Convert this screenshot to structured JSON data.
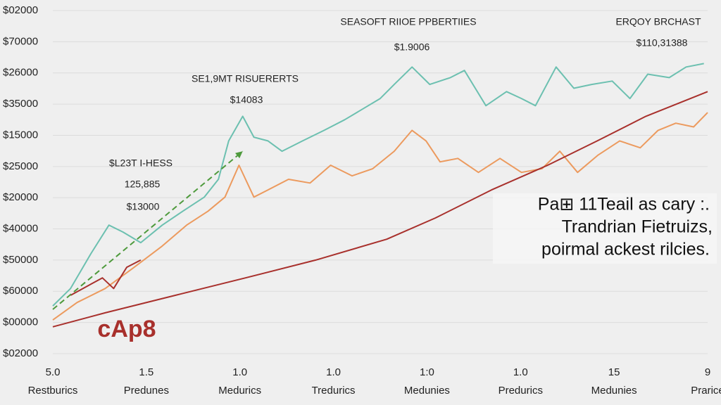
{
  "chart_data": {
    "type": "line",
    "title": "SEASOFT RIIOE PPBERTIIES",
    "annotations": [
      "$1.9006",
      "ERQOY BRCHAST",
      "$110,31388",
      "SE1,9MT RISUERERTS",
      "$14083",
      "$L23T I-HESS",
      "125,885",
      "$13000",
      "cAp8",
      "Pa⊞ 11Teail as cary :.",
      "Trandrian Fietruizs,",
      "poirmal ackest rilcies."
    ],
    "categories": [
      "Restburics",
      "Predunes",
      "Medurics",
      "Tredurics",
      "Medunies",
      "Predurics",
      "Medunies",
      "Prarice"
    ],
    "category_numbers": [
      "5.0",
      "1.5",
      "1.0",
      "1.0",
      "1:0",
      "1.0",
      "15",
      "9"
    ],
    "xlim": [
      0,
      7
    ],
    "ylim": [
      0,
      11
    ],
    "yticks": [
      {
        "value": 11,
        "label": "$02000"
      },
      {
        "value": 10,
        "label": "$70000"
      },
      {
        "value": 9,
        "label": "$26000"
      },
      {
        "value": 8,
        "label": "$35000"
      },
      {
        "value": 7,
        "label": "$15000"
      },
      {
        "value": 6,
        "label": "$25000"
      },
      {
        "value": 5,
        "label": "$20000"
      },
      {
        "value": 4,
        "label": "$40000"
      },
      {
        "value": 3,
        "label": "$50000"
      },
      {
        "value": 2,
        "label": "$60000"
      },
      {
        "value": 1,
        "label": "$00000"
      },
      {
        "value": 0,
        "label": "$02000"
      }
    ],
    "grid": true,
    "series": [
      {
        "color": "#6cc0b0",
        "x": [
          0,
          0.19,
          0.41,
          0.6,
          0.75,
          0.94,
          1.17,
          1.39,
          1.62,
          1.77,
          1.88,
          2.03,
          2.15,
          2.3,
          2.45,
          2.67,
          2.9,
          3.12,
          3.31,
          3.5,
          3.65,
          3.84,
          4.03,
          4.25,
          4.4,
          4.63,
          4.85,
          5.01,
          5.16,
          5.38,
          5.57,
          5.76,
          5.98,
          6.17,
          6.36,
          6.59,
          6.77,
          6.96
        ],
        "values": [
          1.53,
          2.09,
          3.22,
          4.12,
          3.9,
          3.56,
          4.12,
          4.57,
          5.02,
          5.59,
          6.82,
          7.61,
          6.94,
          6.82,
          6.49,
          6.82,
          7.16,
          7.5,
          7.84,
          8.18,
          8.63,
          9.19,
          8.63,
          8.85,
          9.08,
          7.95,
          8.4,
          8.18,
          7.95,
          9.19,
          8.51,
          8.63,
          8.74,
          8.18,
          8.96,
          8.85,
          9.19,
          9.3
        ]
      },
      {
        "color": "#ec9a5e",
        "x": [
          0,
          0.26,
          0.56,
          0.87,
          1.17,
          1.43,
          1.66,
          1.84,
          1.99,
          2.15,
          2.3,
          2.52,
          2.75,
          2.97,
          3.2,
          3.42,
          3.65,
          3.84,
          3.99,
          4.14,
          4.33,
          4.55,
          4.78,
          5.01,
          5.23,
          5.42,
          5.61,
          5.83,
          6.06,
          6.28,
          6.47,
          6.66,
          6.85,
          7
        ],
        "values": [
          1.08,
          1.64,
          2.09,
          2.77,
          3.45,
          4.12,
          4.57,
          5.02,
          6.04,
          5.02,
          5.25,
          5.59,
          5.47,
          6.04,
          5.7,
          5.93,
          6.49,
          7.16,
          6.82,
          6.15,
          6.26,
          5.81,
          6.26,
          5.81,
          5.93,
          6.49,
          5.81,
          6.37,
          6.82,
          6.6,
          7.16,
          7.39,
          7.27,
          7.73
        ]
      },
      {
        "color": "#a8302c",
        "x": [
          0,
          0.56,
          1.31,
          2.06,
          2.81,
          3.57,
          4.09,
          4.69,
          5.29,
          5.82,
          6.34,
          7
        ],
        "values": [
          0.86,
          1.31,
          1.87,
          2.43,
          3.0,
          3.67,
          4.35,
          5.25,
          6.04,
          6.82,
          7.61,
          8.4
        ]
      },
      {
        "color": "#a8302c",
        "x": [
          0.19,
          0.53,
          0.65,
          0.79,
          0.94
        ],
        "values": [
          1.87,
          2.43,
          2.09,
          2.77,
          3.0
        ]
      },
      {
        "color": "#4e9a3c",
        "dashed": true,
        "arrow": true,
        "x": [
          0,
          2.03
        ],
        "values": [
          1.42,
          6.49
        ]
      }
    ]
  }
}
